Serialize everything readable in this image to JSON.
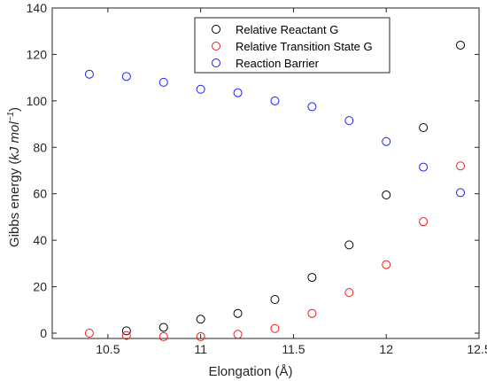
{
  "chart_data": {
    "type": "scatter",
    "title": "",
    "xlabel": "Elongation (Å)",
    "ylabel_parts": {
      "pre": "Gibbs energy (",
      "unit": "kJ mol",
      "exp": "−1",
      "post": ")"
    },
    "xlim": [
      10.2,
      12.5
    ],
    "ylim": [
      0,
      140
    ],
    "xticks": [
      10.5,
      11,
      11.5,
      12,
      12.5
    ],
    "xtick_labels": [
      "10.5",
      "11",
      "11.5",
      "12",
      "12.5"
    ],
    "yticks": [
      0,
      20,
      40,
      60,
      80,
      100,
      120,
      140
    ],
    "ytick_labels": [
      "0",
      "20",
      "40",
      "60",
      "80",
      "100",
      "120",
      "140"
    ],
    "grid": false,
    "legend_position": "top-center",
    "series": [
      {
        "name": "Relative Reactant G",
        "color": "#000000",
        "x": [
          10.6,
          10.8,
          11.0,
          11.2,
          11.4,
          11.6,
          11.8,
          12.0,
          12.2,
          12.4
        ],
        "y": [
          1,
          2.5,
          6,
          8.5,
          14.5,
          24,
          38,
          59.5,
          88.5,
          124
        ]
      },
      {
        "name": "Relative Transition State G",
        "color": "#e8201c",
        "x": [
          10.4,
          10.6,
          10.8,
          11.0,
          11.2,
          11.4,
          11.6,
          11.8,
          12.0,
          12.2,
          12.4
        ],
        "y": [
          0,
          -1,
          -1.5,
          -1.5,
          -0.5,
          2,
          8.5,
          17.5,
          29.5,
          48,
          72
        ]
      },
      {
        "name": "Reaction Barrier",
        "color": "#1f1fe8",
        "x": [
          10.4,
          10.6,
          10.8,
          11.0,
          11.2,
          11.4,
          11.6,
          11.8,
          12.0,
          12.2,
          12.4
        ],
        "y": [
          111.5,
          110.5,
          108,
          105,
          103.5,
          100,
          97.5,
          91.5,
          82.5,
          71.5,
          60.5
        ]
      }
    ]
  }
}
